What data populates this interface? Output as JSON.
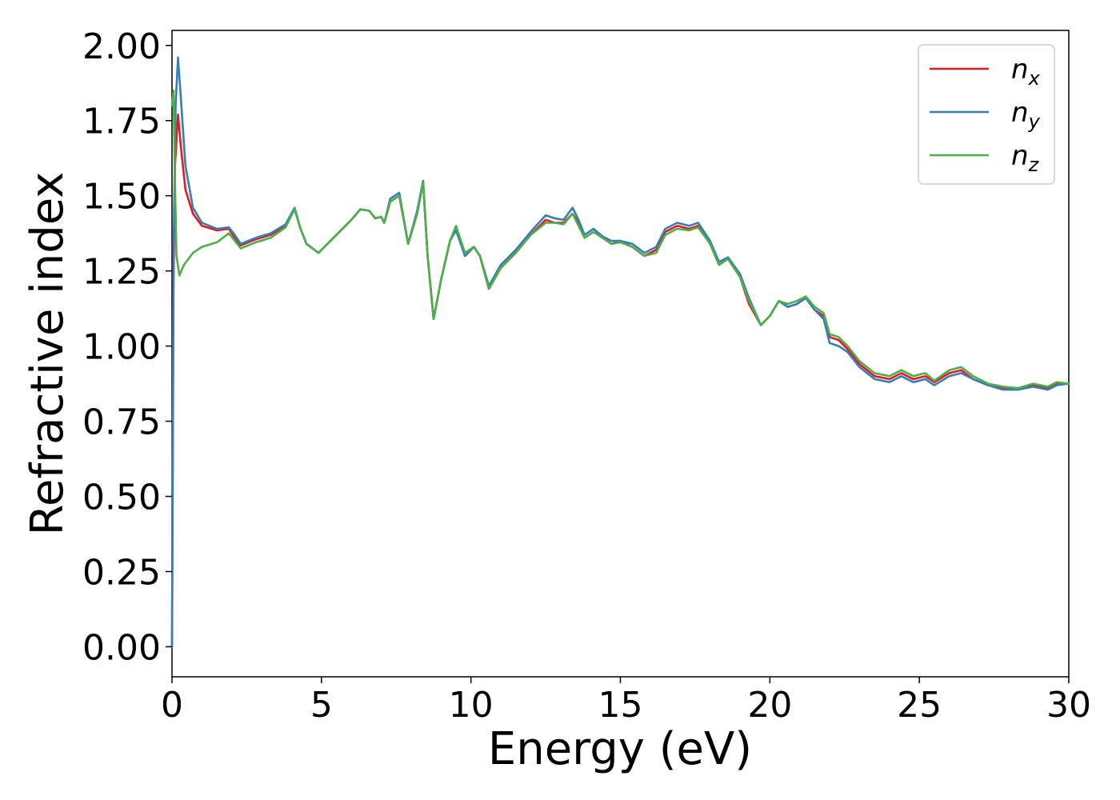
{
  "chart_data": {
    "type": "line",
    "title": "",
    "xlabel": "Energy (eV)",
    "ylabel": "Refractive index",
    "xlim": [
      0,
      30
    ],
    "ylim": [
      -0.1,
      2.05
    ],
    "xticks": [
      0,
      5,
      10,
      15,
      20,
      25,
      30
    ],
    "xtick_labels": [
      "0",
      "5",
      "10",
      "15",
      "20",
      "25",
      "30"
    ],
    "yticks": [
      0,
      0.25,
      0.5,
      0.75,
      1.0,
      1.25,
      1.5,
      1.75,
      2.0
    ],
    "ytick_labels": [
      "0.00",
      "0.25",
      "0.50",
      "0.75",
      "1.00",
      "1.25",
      "1.50",
      "1.75",
      "2.00"
    ],
    "grid": false,
    "legend_position": "top-right",
    "series": [
      {
        "name": "n_x",
        "legend_base": "n",
        "legend_sub": "x",
        "color": "#e41a1c",
        "points": [
          [
            0,
            0
          ],
          [
            0.05,
            1.2
          ],
          [
            0.1,
            1.6
          ],
          [
            0.2,
            1.77
          ],
          [
            0.3,
            1.66
          ],
          [
            0.45,
            1.52
          ],
          [
            0.7,
            1.44
          ],
          [
            1.0,
            1.4
          ],
          [
            1.5,
            1.385
          ],
          [
            1.9,
            1.39
          ],
          [
            2.1,
            1.36
          ],
          [
            2.3,
            1.335
          ],
          [
            2.8,
            1.355
          ],
          [
            3.3,
            1.37
          ],
          [
            3.8,
            1.4
          ],
          [
            4.1,
            1.455
          ],
          [
            4.3,
            1.39
          ],
          [
            4.5,
            1.34
          ],
          [
            4.9,
            1.31
          ],
          [
            5.4,
            1.36
          ],
          [
            6.0,
            1.42
          ],
          [
            6.3,
            1.455
          ],
          [
            6.6,
            1.45
          ],
          [
            6.8,
            1.425
          ],
          [
            7.0,
            1.43
          ],
          [
            7.1,
            1.41
          ],
          [
            7.3,
            1.48
          ],
          [
            7.6,
            1.5
          ],
          [
            7.9,
            1.34
          ],
          [
            8.2,
            1.44
          ],
          [
            8.4,
            1.545
          ],
          [
            8.55,
            1.3
          ],
          [
            8.75,
            1.09
          ],
          [
            9.0,
            1.22
          ],
          [
            9.3,
            1.35
          ],
          [
            9.5,
            1.39
          ],
          [
            9.8,
            1.3
          ],
          [
            10.1,
            1.33
          ],
          [
            10.3,
            1.3
          ],
          [
            10.6,
            1.19
          ],
          [
            11.0,
            1.26
          ],
          [
            11.5,
            1.31
          ],
          [
            12.0,
            1.37
          ],
          [
            12.5,
            1.42
          ],
          [
            12.8,
            1.41
          ],
          [
            13.1,
            1.41
          ],
          [
            13.4,
            1.44
          ],
          [
            13.6,
            1.41
          ],
          [
            13.8,
            1.36
          ],
          [
            14.1,
            1.38
          ],
          [
            14.4,
            1.36
          ],
          [
            14.7,
            1.34
          ],
          [
            15.0,
            1.35
          ],
          [
            15.4,
            1.33
          ],
          [
            15.8,
            1.3
          ],
          [
            16.2,
            1.32
          ],
          [
            16.5,
            1.38
          ],
          [
            16.9,
            1.4
          ],
          [
            17.3,
            1.39
          ],
          [
            17.6,
            1.4
          ],
          [
            18.0,
            1.34
          ],
          [
            18.3,
            1.27
          ],
          [
            18.6,
            1.29
          ],
          [
            19.0,
            1.23
          ],
          [
            19.3,
            1.14
          ],
          [
            19.7,
            1.07
          ],
          [
            20.0,
            1.1
          ],
          [
            20.3,
            1.15
          ],
          [
            20.6,
            1.13
          ],
          [
            20.9,
            1.14
          ],
          [
            21.2,
            1.16
          ],
          [
            21.5,
            1.12
          ],
          [
            21.8,
            1.1
          ],
          [
            22.0,
            1.03
          ],
          [
            22.3,
            1.02
          ],
          [
            22.6,
            0.99
          ],
          [
            23.0,
            0.94
          ],
          [
            23.5,
            0.9
          ],
          [
            24.0,
            0.89
          ],
          [
            24.4,
            0.91
          ],
          [
            24.8,
            0.89
          ],
          [
            25.2,
            0.9
          ],
          [
            25.5,
            0.88
          ],
          [
            26.0,
            0.91
          ],
          [
            26.4,
            0.92
          ],
          [
            26.8,
            0.89
          ],
          [
            27.3,
            0.87
          ],
          [
            27.8,
            0.86
          ],
          [
            28.3,
            0.86
          ],
          [
            28.8,
            0.87
          ],
          [
            29.3,
            0.86
          ],
          [
            29.6,
            0.875
          ],
          [
            30.0,
            0.875
          ]
        ]
      },
      {
        "name": "n_y",
        "legend_base": "n",
        "legend_sub": "y",
        "color": "#377eb8",
        "points": [
          [
            0,
            0
          ],
          [
            0.05,
            1.3
          ],
          [
            0.12,
            1.8
          ],
          [
            0.2,
            1.96
          ],
          [
            0.3,
            1.82
          ],
          [
            0.45,
            1.6
          ],
          [
            0.7,
            1.46
          ],
          [
            1.0,
            1.41
          ],
          [
            1.5,
            1.39
          ],
          [
            1.9,
            1.395
          ],
          [
            2.1,
            1.37
          ],
          [
            2.3,
            1.34
          ],
          [
            2.8,
            1.36
          ],
          [
            3.3,
            1.375
          ],
          [
            3.8,
            1.405
          ],
          [
            4.1,
            1.46
          ],
          [
            4.3,
            1.39
          ],
          [
            4.5,
            1.34
          ],
          [
            4.9,
            1.31
          ],
          [
            5.4,
            1.36
          ],
          [
            6.0,
            1.42
          ],
          [
            6.3,
            1.455
          ],
          [
            6.6,
            1.45
          ],
          [
            6.8,
            1.425
          ],
          [
            7.0,
            1.43
          ],
          [
            7.1,
            1.41
          ],
          [
            7.3,
            1.49
          ],
          [
            7.6,
            1.51
          ],
          [
            7.9,
            1.34
          ],
          [
            8.2,
            1.45
          ],
          [
            8.4,
            1.55
          ],
          [
            8.55,
            1.3
          ],
          [
            8.75,
            1.09
          ],
          [
            9.0,
            1.22
          ],
          [
            9.3,
            1.35
          ],
          [
            9.5,
            1.385
          ],
          [
            9.8,
            1.3
          ],
          [
            10.1,
            1.33
          ],
          [
            10.3,
            1.3
          ],
          [
            10.6,
            1.2
          ],
          [
            11.0,
            1.27
          ],
          [
            11.5,
            1.32
          ],
          [
            12.0,
            1.38
          ],
          [
            12.5,
            1.435
          ],
          [
            12.8,
            1.425
          ],
          [
            13.1,
            1.42
          ],
          [
            13.4,
            1.46
          ],
          [
            13.6,
            1.42
          ],
          [
            13.8,
            1.37
          ],
          [
            14.1,
            1.39
          ],
          [
            14.4,
            1.365
          ],
          [
            14.7,
            1.35
          ],
          [
            15.0,
            1.35
          ],
          [
            15.4,
            1.34
          ],
          [
            15.8,
            1.31
          ],
          [
            16.2,
            1.33
          ],
          [
            16.5,
            1.39
          ],
          [
            16.9,
            1.41
          ],
          [
            17.3,
            1.4
          ],
          [
            17.6,
            1.41
          ],
          [
            18.0,
            1.35
          ],
          [
            18.3,
            1.28
          ],
          [
            18.6,
            1.295
          ],
          [
            19.0,
            1.24
          ],
          [
            19.3,
            1.16
          ],
          [
            19.7,
            1.07
          ],
          [
            20.0,
            1.1
          ],
          [
            20.3,
            1.15
          ],
          [
            20.6,
            1.13
          ],
          [
            20.9,
            1.14
          ],
          [
            21.2,
            1.16
          ],
          [
            21.5,
            1.12
          ],
          [
            21.8,
            1.09
          ],
          [
            22.0,
            1.01
          ],
          [
            22.3,
            1.0
          ],
          [
            22.6,
            0.98
          ],
          [
            23.0,
            0.93
          ],
          [
            23.5,
            0.89
          ],
          [
            24.0,
            0.88
          ],
          [
            24.4,
            0.9
          ],
          [
            24.8,
            0.88
          ],
          [
            25.2,
            0.89
          ],
          [
            25.5,
            0.87
          ],
          [
            26.0,
            0.9
          ],
          [
            26.4,
            0.91
          ],
          [
            26.8,
            0.89
          ],
          [
            27.3,
            0.87
          ],
          [
            27.8,
            0.855
          ],
          [
            28.3,
            0.855
          ],
          [
            28.8,
            0.865
          ],
          [
            29.3,
            0.855
          ],
          [
            29.6,
            0.87
          ],
          [
            30.0,
            0.875
          ]
        ]
      },
      {
        "name": "n_z",
        "legend_base": "n",
        "legend_sub": "z",
        "color": "#4daf4a",
        "points": [
          [
            0,
            1.8
          ],
          [
            0.05,
            1.85
          ],
          [
            0.1,
            1.55
          ],
          [
            0.15,
            1.3
          ],
          [
            0.25,
            1.235
          ],
          [
            0.4,
            1.27
          ],
          [
            0.7,
            1.31
          ],
          [
            1.0,
            1.33
          ],
          [
            1.5,
            1.345
          ],
          [
            1.9,
            1.375
          ],
          [
            2.1,
            1.35
          ],
          [
            2.3,
            1.325
          ],
          [
            2.8,
            1.345
          ],
          [
            3.3,
            1.36
          ],
          [
            3.8,
            1.395
          ],
          [
            4.1,
            1.455
          ],
          [
            4.3,
            1.39
          ],
          [
            4.5,
            1.34
          ],
          [
            4.9,
            1.31
          ],
          [
            5.4,
            1.36
          ],
          [
            6.0,
            1.42
          ],
          [
            6.3,
            1.455
          ],
          [
            6.6,
            1.45
          ],
          [
            6.8,
            1.425
          ],
          [
            7.0,
            1.43
          ],
          [
            7.1,
            1.41
          ],
          [
            7.3,
            1.48
          ],
          [
            7.6,
            1.5
          ],
          [
            7.9,
            1.34
          ],
          [
            8.2,
            1.44
          ],
          [
            8.4,
            1.545
          ],
          [
            8.55,
            1.3
          ],
          [
            8.75,
            1.09
          ],
          [
            9.0,
            1.22
          ],
          [
            9.3,
            1.35
          ],
          [
            9.5,
            1.4
          ],
          [
            9.8,
            1.31
          ],
          [
            10.1,
            1.33
          ],
          [
            10.3,
            1.3
          ],
          [
            10.6,
            1.19
          ],
          [
            11.0,
            1.26
          ],
          [
            11.5,
            1.31
          ],
          [
            12.0,
            1.37
          ],
          [
            12.5,
            1.41
          ],
          [
            12.8,
            1.41
          ],
          [
            13.1,
            1.405
          ],
          [
            13.4,
            1.44
          ],
          [
            13.6,
            1.4
          ],
          [
            13.8,
            1.36
          ],
          [
            14.1,
            1.38
          ],
          [
            14.4,
            1.36
          ],
          [
            14.7,
            1.34
          ],
          [
            15.0,
            1.345
          ],
          [
            15.4,
            1.33
          ],
          [
            15.8,
            1.3
          ],
          [
            16.2,
            1.31
          ],
          [
            16.5,
            1.37
          ],
          [
            16.9,
            1.39
          ],
          [
            17.3,
            1.385
          ],
          [
            17.6,
            1.395
          ],
          [
            18.0,
            1.34
          ],
          [
            18.3,
            1.27
          ],
          [
            18.6,
            1.29
          ],
          [
            19.0,
            1.23
          ],
          [
            19.3,
            1.15
          ],
          [
            19.7,
            1.07
          ],
          [
            20.0,
            1.1
          ],
          [
            20.3,
            1.15
          ],
          [
            20.6,
            1.14
          ],
          [
            20.9,
            1.15
          ],
          [
            21.2,
            1.165
          ],
          [
            21.5,
            1.13
          ],
          [
            21.8,
            1.11
          ],
          [
            22.0,
            1.04
          ],
          [
            22.3,
            1.03
          ],
          [
            22.6,
            1.0
          ],
          [
            23.0,
            0.95
          ],
          [
            23.5,
            0.91
          ],
          [
            24.0,
            0.9
          ],
          [
            24.4,
            0.92
          ],
          [
            24.8,
            0.9
          ],
          [
            25.2,
            0.91
          ],
          [
            25.5,
            0.885
          ],
          [
            26.0,
            0.92
          ],
          [
            26.4,
            0.93
          ],
          [
            26.8,
            0.9
          ],
          [
            27.3,
            0.875
          ],
          [
            27.8,
            0.865
          ],
          [
            28.3,
            0.86
          ],
          [
            28.8,
            0.875
          ],
          [
            29.3,
            0.865
          ],
          [
            29.6,
            0.88
          ],
          [
            30.0,
            0.875
          ]
        ]
      }
    ]
  }
}
